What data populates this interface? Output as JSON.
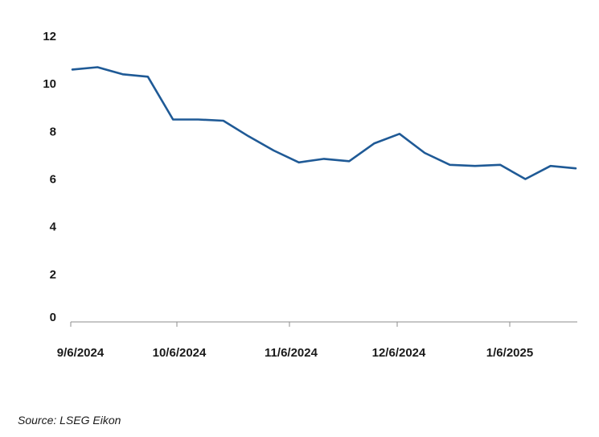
{
  "chart_data": {
    "type": "line",
    "x_tick_labels": [
      "9/6/2024",
      "10/6/2024",
      "11/6/2024",
      "12/6/2024",
      "1/6/2025"
    ],
    "y_tick_labels": [
      "0",
      "2",
      "4",
      "6",
      "8",
      "10",
      "12"
    ],
    "ylim": [
      0,
      12
    ],
    "grid": false,
    "series": [
      {
        "values": [
          10.6,
          10.7,
          10.4,
          10.3,
          8.5,
          8.5,
          8.45,
          7.8,
          7.2,
          6.7,
          6.85,
          6.75,
          7.5,
          7.9,
          7.1,
          6.6,
          6.55,
          6.6,
          6.0,
          6.55,
          6.45
        ],
        "color": "#1f5a96"
      }
    ]
  },
  "source": "Source: LSEG Eikon"
}
